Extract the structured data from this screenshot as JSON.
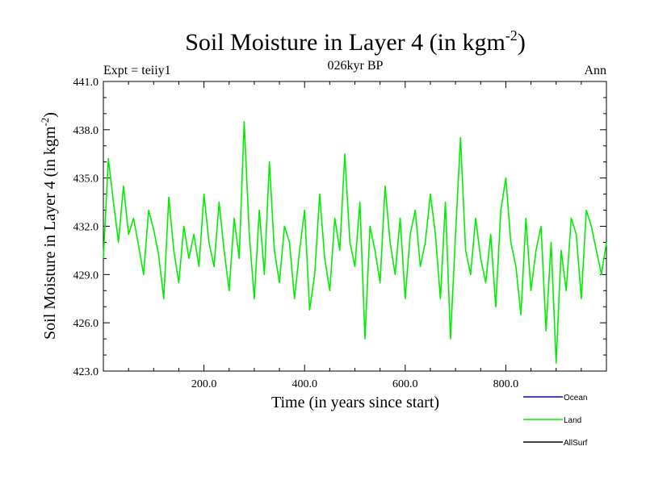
{
  "chart_data": {
    "type": "line",
    "title": "Soil Moisture in Layer 4 (in kgm",
    "title_sup": "-2",
    "title_end": ")",
    "subtitle_left": "Expt = teiiy1",
    "subtitle_center": "026kyr BP",
    "subtitle_right": "Ann",
    "xlabel": "Time (in years since start)",
    "ylabel": "Soil Moisture in Layer 4 (in kgm",
    "ylabel_sup": "-2",
    "ylabel_end": ")",
    "xlim": [
      0,
      1000
    ],
    "ylim": [
      423.0,
      441.0
    ],
    "xticks": [
      200,
      400,
      600,
      800
    ],
    "xtick_labels": [
      "200.0",
      "400.0",
      "600.0",
      "800.0"
    ],
    "yticks": [
      423,
      426,
      429,
      432,
      435,
      438,
      441
    ],
    "ytick_labels": [
      "423.0",
      "426.0",
      "429.0",
      "432.0",
      "435.0",
      "438.0",
      "441.0"
    ],
    "series": [
      {
        "name": "Land",
        "color": "#00ee00",
        "x": [
          0,
          10,
          20,
          30,
          40,
          50,
          60,
          70,
          80,
          90,
          100,
          110,
          120,
          130,
          140,
          150,
          160,
          170,
          180,
          190,
          200,
          210,
          220,
          230,
          240,
          250,
          260,
          270,
          280,
          290,
          300,
          310,
          320,
          330,
          340,
          350,
          360,
          370,
          380,
          390,
          400,
          410,
          420,
          430,
          440,
          450,
          460,
          470,
          480,
          490,
          500,
          510,
          520,
          530,
          540,
          550,
          560,
          570,
          580,
          590,
          600,
          610,
          620,
          630,
          640,
          650,
          660,
          670,
          680,
          690,
          700,
          710,
          720,
          730,
          740,
          750,
          760,
          770,
          780,
          790,
          800,
          810,
          820,
          830,
          840,
          850,
          860,
          870,
          880,
          890,
          900,
          910,
          920,
          930,
          940,
          950,
          960,
          970,
          980,
          990,
          1000
        ],
        "values": [
          430.0,
          436.2,
          433.5,
          431.0,
          434.5,
          431.5,
          432.5,
          430.8,
          429.0,
          433.0,
          431.8,
          430.2,
          427.5,
          433.8,
          430.5,
          428.5,
          432.0,
          430.0,
          431.5,
          429.5,
          434.0,
          431.0,
          429.5,
          433.5,
          430.5,
          428.0,
          432.5,
          430.0,
          438.5,
          431.5,
          427.5,
          433.0,
          429.0,
          436.0,
          430.5,
          428.5,
          432.0,
          431.0,
          427.5,
          430.5,
          433.0,
          426.8,
          429.0,
          434.0,
          430.0,
          428.0,
          432.5,
          430.5,
          436.5,
          431.0,
          429.5,
          433.5,
          425.0,
          432.0,
          430.5,
          428.5,
          434.5,
          431.0,
          429.0,
          432.5,
          427.5,
          431.5,
          433.0,
          429.5,
          431.0,
          434.0,
          431.5,
          427.5,
          433.5,
          425.0,
          431.5,
          437.5,
          430.5,
          429.0,
          432.5,
          430.0,
          428.5,
          431.5,
          427.0,
          433.0,
          435.0,
          431.0,
          429.5,
          426.5,
          432.5,
          428.0,
          430.5,
          432.0,
          425.5,
          431.0,
          423.5,
          430.5,
          428.0,
          432.5,
          431.5,
          427.5,
          433.0,
          432.0,
          430.5,
          429.0,
          431.0
        ]
      }
    ],
    "legend": [
      {
        "name": "Ocean",
        "color": "#0000ff"
      },
      {
        "name": "Land",
        "color": "#00ee00"
      },
      {
        "name": "AllSurf",
        "color": "#000000"
      }
    ]
  }
}
